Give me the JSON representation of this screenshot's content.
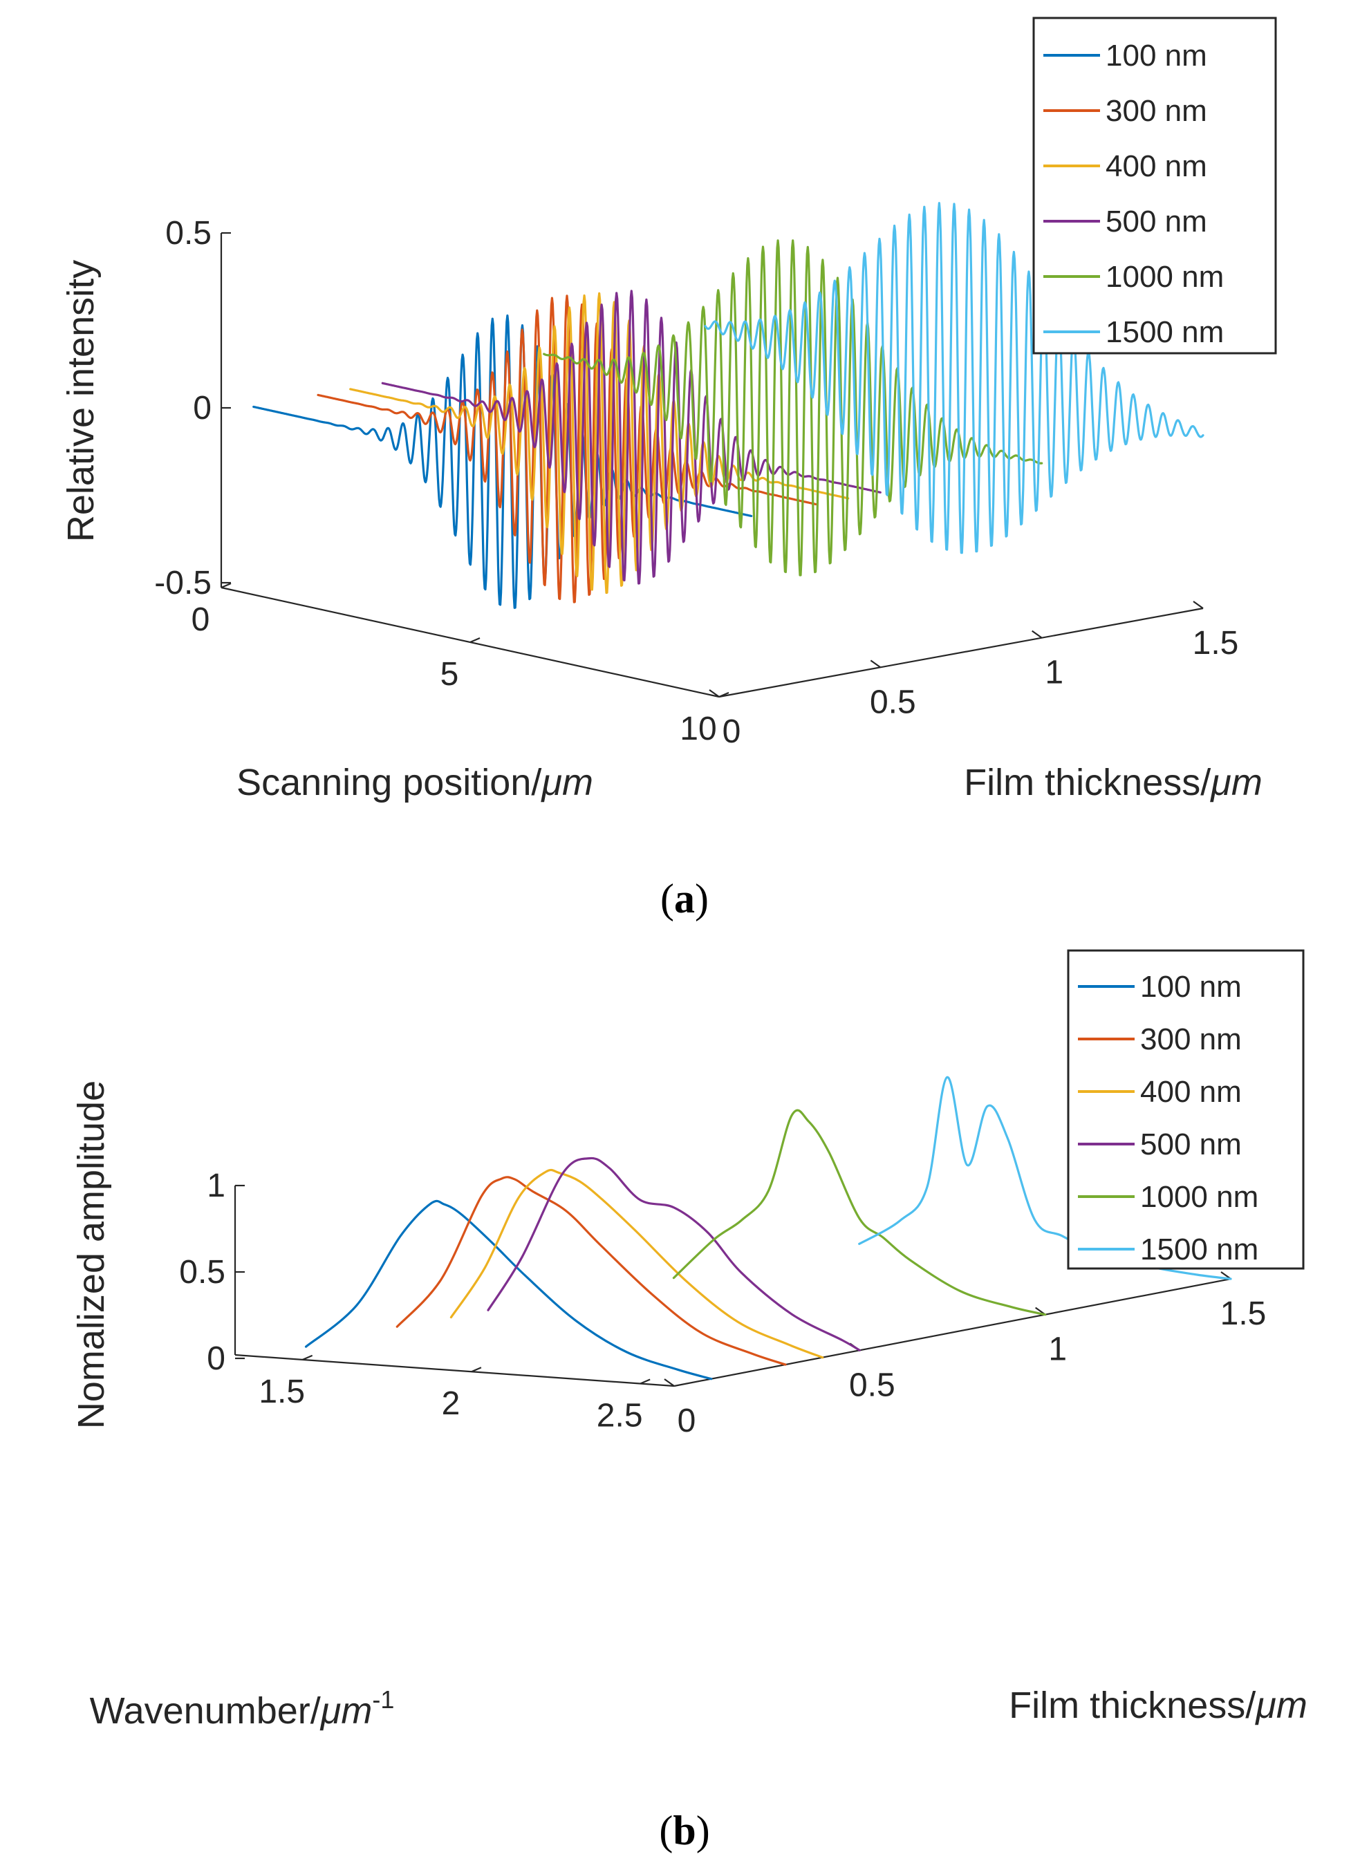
{
  "chart_data": [
    {
      "id": "a",
      "type": "line",
      "view": "3d",
      "caption": {
        "open": "(",
        "letter": "a",
        "close": ")"
      },
      "xlabel": {
        "text": "Film thickness/",
        "unit": "μm"
      },
      "ylabel": {
        "text": "Scanning position/",
        "unit": "μm"
      },
      "zlabel": {
        "text": "Relative intensity"
      },
      "xlim": [
        0,
        1.5
      ],
      "ylim": [
        0,
        10
      ],
      "zlim": [
        -0.5,
        0.5
      ],
      "x_ticks": [
        "0",
        "0.5",
        "1",
        "1.5"
      ],
      "y_ticks": [
        "0",
        "5",
        "10"
      ],
      "z_ticks": [
        "0.5",
        "0",
        "-0.5"
      ],
      "x_tick_values": [
        0,
        0.5,
        1,
        1.5
      ],
      "y_tick_values": [
        0,
        5,
        10
      ],
      "z_tick_values": [
        0.5,
        0,
        -0.5
      ],
      "legend": {
        "placement": "top-right"
      },
      "series": [
        {
          "name": "100 nm",
          "thickness_um": 0.1,
          "color": "#0072BD",
          "center_um": 5.1,
          "peak": 0.42,
          "envelope_um": 1.0,
          "period_um": 0.3
        },
        {
          "name": "300 nm",
          "thickness_um": 0.3,
          "color": "#D95319",
          "center_um": 5.0,
          "peak": 0.44,
          "envelope_um": 1.1,
          "period_um": 0.3
        },
        {
          "name": "400 nm",
          "thickness_um": 0.4,
          "color": "#EDB120",
          "center_um": 5.0,
          "peak": 0.43,
          "envelope_um": 1.1,
          "period_um": 0.3
        },
        {
          "name": "500 nm",
          "thickness_um": 0.5,
          "color": "#7E2F8E",
          "center_um": 5.0,
          "peak": 0.42,
          "envelope_um": 1.1,
          "period_um": 0.3
        },
        {
          "name": "1000 nm",
          "thickness_um": 1.0,
          "color": "#77AC30",
          "center_um": 5.0,
          "peak": 0.48,
          "envelope_um": 1.5,
          "period_um": 0.3
        },
        {
          "name": "1500 nm",
          "thickness_um": 1.5,
          "color": "#4DBEEE",
          "center_um": 5.0,
          "peak": 0.5,
          "envelope_um": 1.8,
          "period_um": 0.3
        }
      ]
    },
    {
      "id": "b",
      "type": "line",
      "view": "3d",
      "caption": {
        "open": "(",
        "letter": "b",
        "close": ")"
      },
      "xlabel": {
        "text": "Film thickness/",
        "unit": "μm"
      },
      "ylabel": {
        "text": "Wavenumber/",
        "unit": "μm",
        "sup": "-1"
      },
      "zlabel": {
        "text": "Nomalized amplitude"
      },
      "xlim": [
        0,
        1.5
      ],
      "ylim": [
        1.3,
        2.6
      ],
      "zlim": [
        0,
        1
      ],
      "x_ticks": [
        "0",
        "0.5",
        "1",
        "1.5"
      ],
      "y_ticks": [
        "1.5",
        "2",
        "2.5"
      ],
      "z_ticks": [
        "1",
        "0.5",
        "0"
      ],
      "x_tick_values": [
        0,
        0.5,
        1,
        1.5
      ],
      "y_tick_values": [
        1.5,
        2,
        2.5
      ],
      "z_tick_values": [
        1,
        0.5,
        0
      ],
      "legend": {
        "placement": "top-right"
      },
      "series": [
        {
          "name": "100 nm",
          "thickness_um": 0.1,
          "color": "#0072BD",
          "k": [
            1.4,
            1.55,
            1.68,
            1.77,
            1.81,
            1.86,
            1.95,
            2.05,
            2.2,
            2.35,
            2.5,
            2.6
          ],
          "amp": [
            0.02,
            0.28,
            0.7,
            0.9,
            0.9,
            0.85,
            0.7,
            0.52,
            0.28,
            0.12,
            0.04,
            0.0
          ]
        },
        {
          "name": "300 nm",
          "thickness_um": 0.3,
          "color": "#D95319",
          "k": [
            1.45,
            1.58,
            1.7,
            1.76,
            1.8,
            1.85,
            1.95,
            2.05,
            2.2,
            2.35,
            2.5,
            2.6
          ],
          "amp": [
            0.06,
            0.35,
            0.85,
            0.96,
            0.96,
            0.9,
            0.8,
            0.62,
            0.36,
            0.15,
            0.05,
            0.0
          ]
        },
        {
          "name": "400 nm",
          "thickness_um": 0.4,
          "color": "#EDB120",
          "k": [
            1.5,
            1.6,
            1.7,
            1.78,
            1.82,
            1.88,
            1.95,
            2.05,
            2.2,
            2.35,
            2.5,
            2.6
          ],
          "amp": [
            0.08,
            0.38,
            0.8,
            0.96,
            0.96,
            0.92,
            0.82,
            0.65,
            0.38,
            0.17,
            0.06,
            0.0
          ]
        },
        {
          "name": "500 nm",
          "thickness_um": 0.5,
          "color": "#7E2F8E",
          "k": [
            1.5,
            1.6,
            1.72,
            1.8,
            1.86,
            1.95,
            2.05,
            2.15,
            2.25,
            2.4,
            2.55,
            2.6
          ],
          "amp": [
            0.08,
            0.4,
            0.9,
            1.0,
            0.95,
            0.78,
            0.75,
            0.62,
            0.4,
            0.18,
            0.05,
            0.0
          ]
        },
        {
          "name": "1000 nm",
          "thickness_um": 1.0,
          "color": "#77AC30",
          "k": [
            1.5,
            1.62,
            1.7,
            1.78,
            1.85,
            1.9,
            1.96,
            2.05,
            2.12,
            2.2,
            2.35,
            2.5,
            2.6
          ],
          "amp": [
            0.06,
            0.3,
            0.42,
            0.6,
            1.05,
            1.02,
            0.85,
            0.48,
            0.38,
            0.26,
            0.1,
            0.03,
            0.0
          ]
        },
        {
          "name": "1500 nm",
          "thickness_um": 1.5,
          "color": "#4DBEEE",
          "k": [
            1.5,
            1.62,
            1.7,
            1.76,
            1.82,
            1.88,
            1.94,
            2.02,
            2.1,
            2.2,
            2.35,
            2.5,
            2.6
          ],
          "amp": [
            0.05,
            0.2,
            0.4,
            1.05,
            0.55,
            0.9,
            0.72,
            0.26,
            0.18,
            0.1,
            0.04,
            0.01,
            0.0
          ]
        }
      ]
    }
  ]
}
